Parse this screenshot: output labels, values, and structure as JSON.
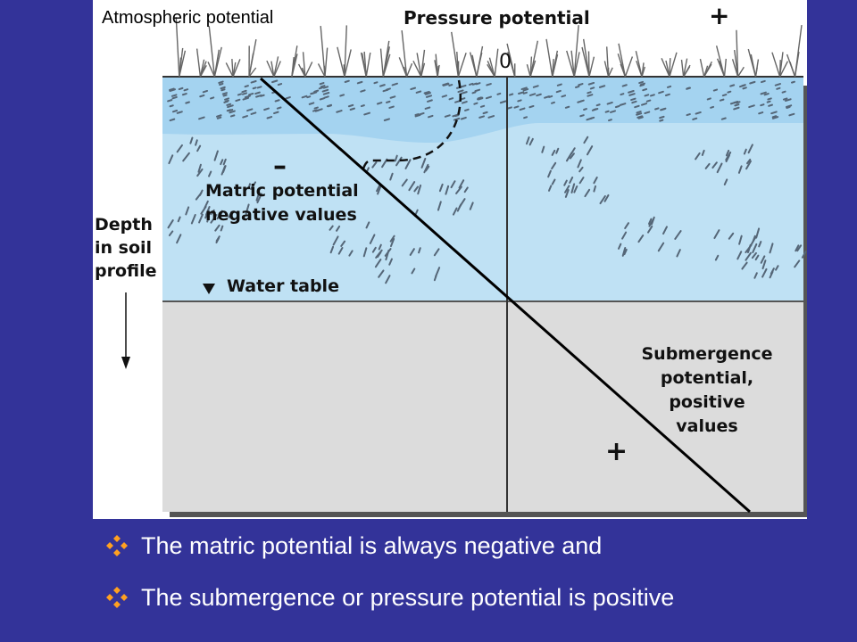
{
  "diagram": {
    "labels": {
      "atmospheric": "Atmospheric potential",
      "pressure": "Pressure potential",
      "zero": "0",
      "plus_top": "+",
      "minus": "–",
      "matric_line1": "Matric potential",
      "matric_line2": "negative values",
      "water_table": "Water table",
      "depth_line1": "Depth",
      "depth_line2": "in soil",
      "depth_line3": "profile",
      "submergence_line1": "Submergence",
      "submergence_line2": "potential,",
      "submergence_line3": "positive",
      "submergence_line4": "values",
      "plus_bottom": "+"
    },
    "colors": {
      "unsaturated_zone": "#bfe1f4",
      "surface_band": "#a4d3f0",
      "saturated_zone": "#dcdcdc",
      "background": "#333399",
      "bullet_icon": "#ffa020"
    }
  },
  "bullets": [
    {
      "icon": "diamond-bullet-icon",
      "text": "The matric potential is always negative and"
    },
    {
      "icon": "diamond-bullet-icon",
      "text": "The submergence or pressure potential is positive"
    }
  ]
}
